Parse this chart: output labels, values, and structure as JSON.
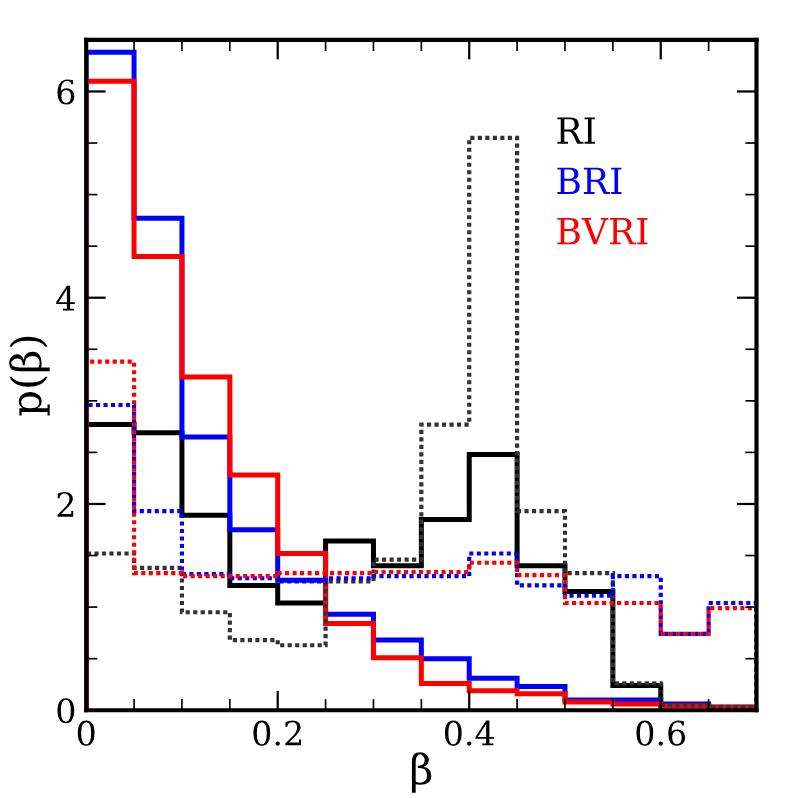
{
  "chart_data": {
    "type": "histogram",
    "xlabel": "β",
    "ylabel": "p(β)",
    "xlim": [
      0,
      0.7
    ],
    "ylim": [
      0,
      6.5
    ],
    "xticks": [
      0,
      0.2,
      0.4,
      0.6
    ],
    "yticks": [
      0,
      2,
      4,
      6
    ],
    "legend": "top right",
    "grid": false,
    "bins": [
      0,
      0.05,
      0.1,
      0.15,
      0.2,
      0.25,
      0.3,
      0.35,
      0.4,
      0.45,
      0.5,
      0.55,
      0.6,
      0.65,
      0.7
    ],
    "series": [
      {
        "name": "RI",
        "color": "#000000",
        "line_style": "solid",
        "values": [
          2.77,
          2.69,
          1.89,
          1.21,
          1.04,
          1.64,
          1.4,
          1.85,
          2.48,
          1.4,
          1.15,
          0.24,
          0.05,
          0.03
        ]
      },
      {
        "name": "BRI",
        "color": "#0000ff",
        "line_style": "solid",
        "values": [
          6.38,
          4.77,
          2.65,
          1.75,
          1.26,
          0.93,
          0.68,
          0.5,
          0.31,
          0.23,
          0.1,
          0.1,
          0.06,
          0.03
        ]
      },
      {
        "name": "BVRI",
        "color": "#ff0000",
        "line_style": "solid",
        "values": [
          6.1,
          4.4,
          3.23,
          2.28,
          1.52,
          0.84,
          0.51,
          0.26,
          0.19,
          0.16,
          0.08,
          0.06,
          0.04,
          0.03
        ]
      },
      {
        "color": "#333333",
        "line_style": "dotted",
        "values": [
          1.52,
          1.38,
          0.95,
          0.68,
          0.63,
          1.25,
          1.46,
          2.77,
          5.55,
          1.93,
          1.33,
          0.26,
          0.05,
          0.03
        ]
      },
      {
        "color": "#0000ff",
        "line_style": "dotted",
        "values": [
          2.96,
          1.93,
          1.32,
          1.28,
          1.25,
          1.28,
          1.3,
          1.3,
          1.52,
          1.21,
          1.11,
          1.3,
          0.74,
          1.04
        ]
      },
      {
        "color": "#ff0000",
        "line_style": "dotted",
        "values": [
          3.38,
          1.33,
          1.3,
          1.3,
          1.33,
          1.33,
          1.34,
          1.34,
          1.43,
          1.31,
          1.04,
          1.04,
          0.74,
          0.99
        ]
      }
    ]
  }
}
